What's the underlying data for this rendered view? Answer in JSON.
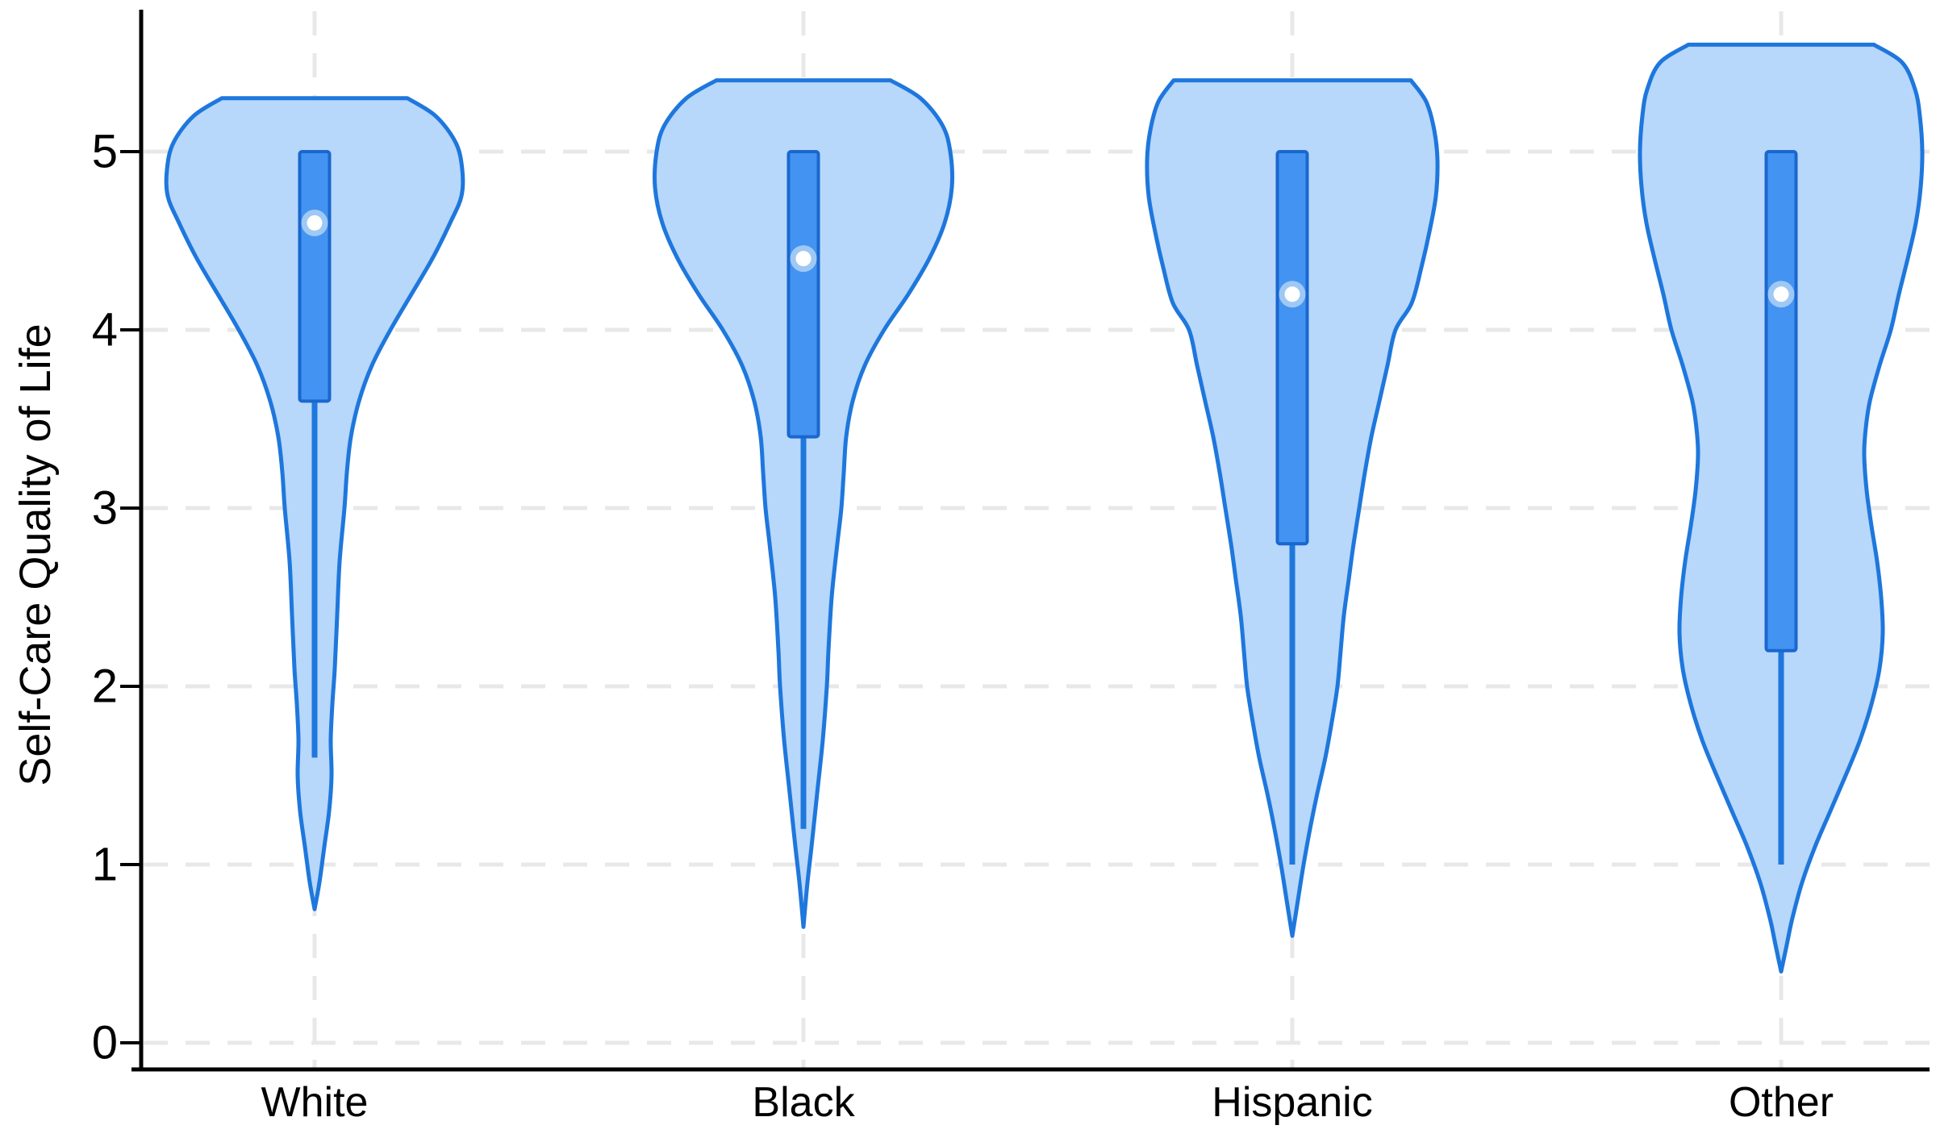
{
  "page": {
    "background": "#ffffff",
    "description": "Violin plot with inner box plots of Self-Care Quality of Life by race/ethnicity"
  },
  "chart_data": {
    "type": "violin",
    "title": "",
    "xlabel": "",
    "ylabel": "Self-Care Quality of Life",
    "categories": [
      "White",
      "Black",
      "Hispanic",
      "Other"
    ],
    "y_ticks": [
      "0",
      "1",
      "2",
      "3",
      "4",
      "5"
    ],
    "y_tick_values": [
      0,
      1,
      2,
      3,
      4,
      5
    ],
    "ylim": [
      0,
      5.8
    ],
    "grid": {
      "horizontal": "dashed",
      "vertical": "dashed-at-category-centers"
    },
    "legend": "none",
    "series": [
      {
        "category": "White",
        "median": 4.6,
        "q1": 3.6,
        "q3": 5.0,
        "whisker_low": 1.6,
        "violin_min": 0.75,
        "violin_max": 5.3,
        "density_profile": [
          [
            5.3,
            115
          ],
          [
            5.2,
            150
          ],
          [
            5.05,
            175
          ],
          [
            4.9,
            183
          ],
          [
            4.75,
            182
          ],
          [
            4.6,
            168
          ],
          [
            4.4,
            146
          ],
          [
            4.2,
            120
          ],
          [
            4.0,
            94
          ],
          [
            3.8,
            71
          ],
          [
            3.6,
            55
          ],
          [
            3.4,
            45
          ],
          [
            3.2,
            40
          ],
          [
            3.0,
            37
          ],
          [
            2.7,
            31
          ],
          [
            2.4,
            28
          ],
          [
            2.1,
            25
          ],
          [
            1.9,
            22
          ],
          [
            1.7,
            20
          ],
          [
            1.5,
            21
          ],
          [
            1.3,
            18
          ],
          [
            1.1,
            12
          ],
          [
            0.9,
            6
          ],
          [
            0.75,
            0
          ]
        ]
      },
      {
        "category": "Black",
        "median": 4.4,
        "q1": 3.4,
        "q3": 5.0,
        "whisker_low": 1.2,
        "violin_min": 0.65,
        "violin_max": 5.4,
        "density_profile": [
          [
            5.4,
            108
          ],
          [
            5.3,
            145
          ],
          [
            5.15,
            172
          ],
          [
            5.0,
            182
          ],
          [
            4.8,
            184
          ],
          [
            4.6,
            175
          ],
          [
            4.4,
            156
          ],
          [
            4.2,
            130
          ],
          [
            4.0,
            100
          ],
          [
            3.8,
            76
          ],
          [
            3.6,
            61
          ],
          [
            3.4,
            53
          ],
          [
            3.2,
            50
          ],
          [
            3.0,
            47
          ],
          [
            2.8,
            42
          ],
          [
            2.5,
            35
          ],
          [
            2.2,
            31
          ],
          [
            2.0,
            29
          ],
          [
            1.7,
            24
          ],
          [
            1.4,
            17
          ],
          [
            1.1,
            10
          ],
          [
            0.9,
            5
          ],
          [
            0.65,
            0
          ]
        ]
      },
      {
        "category": "Hispanic",
        "median": 4.2,
        "q1": 2.8,
        "q3": 5.0,
        "whisker_low": 1.0,
        "violin_min": 0.6,
        "violin_max": 5.4,
        "density_profile": [
          [
            5.4,
            147
          ],
          [
            5.28,
            166
          ],
          [
            5.12,
            176
          ],
          [
            4.95,
            180
          ],
          [
            4.75,
            178
          ],
          [
            4.55,
            170
          ],
          [
            4.35,
            160
          ],
          [
            4.15,
            148
          ],
          [
            4.0,
            128
          ],
          [
            3.8,
            118
          ],
          [
            3.6,
            108
          ],
          [
            3.4,
            98
          ],
          [
            3.2,
            90
          ],
          [
            3.0,
            83
          ],
          [
            2.8,
            76
          ],
          [
            2.6,
            70
          ],
          [
            2.4,
            64
          ],
          [
            2.2,
            60
          ],
          [
            2.0,
            56
          ],
          [
            1.8,
            49
          ],
          [
            1.6,
            41
          ],
          [
            1.4,
            31
          ],
          [
            1.2,
            22
          ],
          [
            1.0,
            14
          ],
          [
            0.8,
            7
          ],
          [
            0.6,
            0
          ]
        ]
      },
      {
        "category": "Other",
        "median": 4.2,
        "q1": 2.2,
        "q3": 5.0,
        "whisker_low": 1.0,
        "violin_min": 0.4,
        "violin_max": 5.6,
        "density_profile": [
          [
            5.6,
            115
          ],
          [
            5.5,
            150
          ],
          [
            5.35,
            166
          ],
          [
            5.2,
            172
          ],
          [
            5.0,
            175
          ],
          [
            4.8,
            173
          ],
          [
            4.6,
            167
          ],
          [
            4.4,
            157
          ],
          [
            4.2,
            146
          ],
          [
            4.0,
            136
          ],
          [
            3.8,
            122
          ],
          [
            3.6,
            110
          ],
          [
            3.45,
            105
          ],
          [
            3.3,
            103
          ],
          [
            3.1,
            106
          ],
          [
            2.9,
            112
          ],
          [
            2.7,
            119
          ],
          [
            2.5,
            124
          ],
          [
            2.3,
            126
          ],
          [
            2.1,
            122
          ],
          [
            1.9,
            112
          ],
          [
            1.7,
            98
          ],
          [
            1.5,
            80
          ],
          [
            1.3,
            61
          ],
          [
            1.1,
            42
          ],
          [
            0.9,
            26
          ],
          [
            0.7,
            14
          ],
          [
            0.55,
            7
          ],
          [
            0.4,
            0
          ]
        ]
      }
    ],
    "colors": {
      "violin_fill": "#B7D7FB",
      "violin_stroke": "#1E77DC",
      "box_fill": "#4394F2",
      "box_stroke": "#1A67CE",
      "whisker": "#1E77DC",
      "median_dot": "#FFFFFF",
      "median_halo": "#9FC9F4",
      "gridline": "#E8E8E8",
      "axis": "#000000",
      "text": "#000000"
    }
  }
}
